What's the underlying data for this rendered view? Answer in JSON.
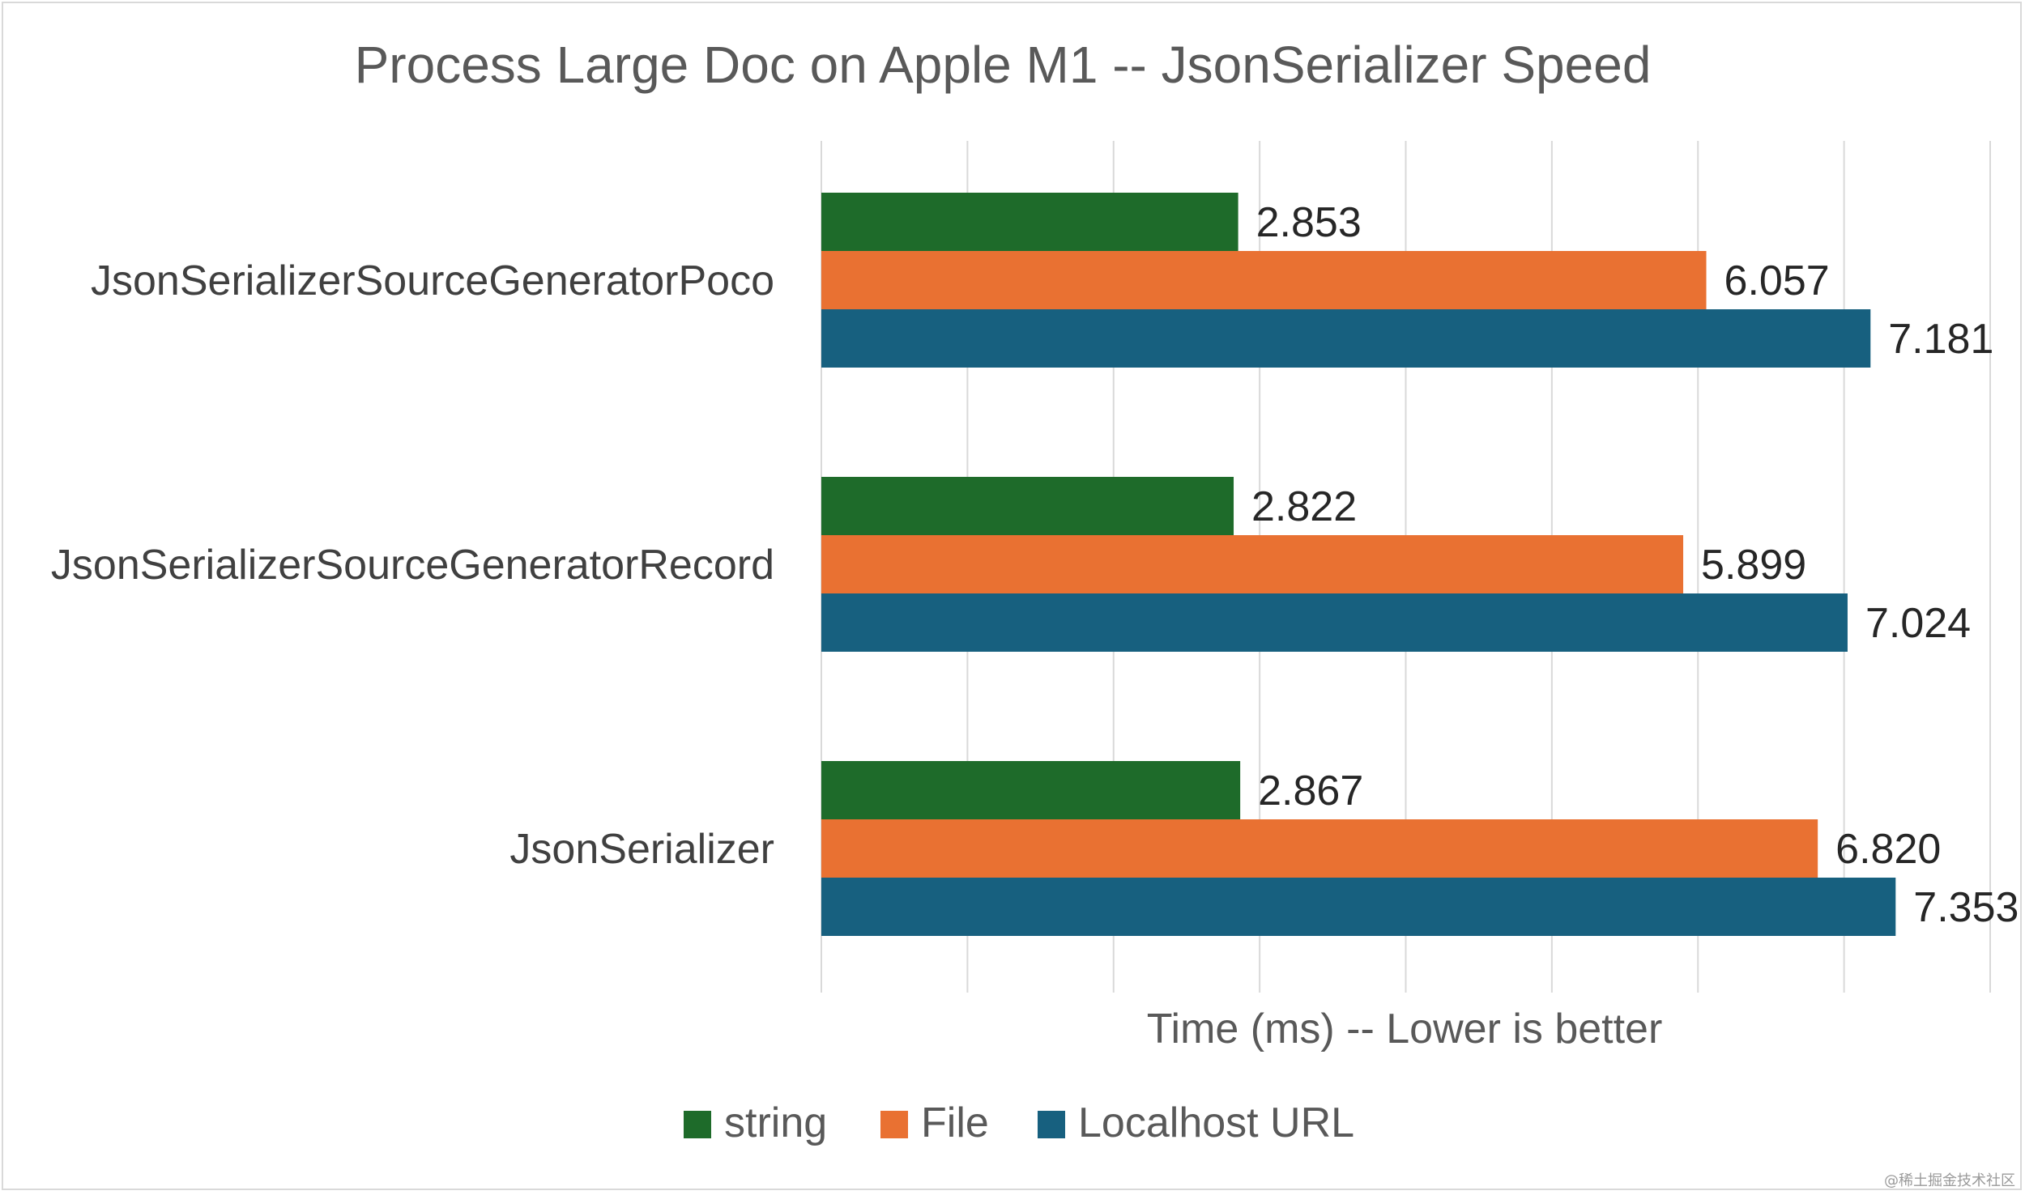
{
  "chart_data": {
    "type": "bar",
    "orientation": "horizontal",
    "title": "Process Large Doc on Apple M1 -- JsonSerializer Speed",
    "categories": [
      "JsonSerializerSourceGeneratorPoco",
      "JsonSerializerSourceGeneratorRecord",
      "JsonSerializer"
    ],
    "series": [
      {
        "name": "string",
        "color": "#1e6b2a",
        "values": [
          2.853,
          2.822,
          2.867
        ],
        "labels": [
          "2.853",
          "2.822",
          "2.867"
        ]
      },
      {
        "name": "File",
        "color": "#e97132",
        "values": [
          6.057,
          5.899,
          6.82
        ],
        "labels": [
          "6.057",
          "5.899",
          "6.820"
        ]
      },
      {
        "name": "Localhost URL",
        "color": "#17607f",
        "values": [
          7.181,
          7.024,
          7.353
        ],
        "labels": [
          "7.181",
          "7.024",
          "7.353"
        ]
      }
    ],
    "xlabel": "Time (ms) -- Lower is better",
    "ylabel": "",
    "xlim": [
      0,
      8
    ],
    "grid": true,
    "tick_labels_visible": false,
    "legend_position": "bottom"
  },
  "watermark": "@稀土掘金技术社区"
}
